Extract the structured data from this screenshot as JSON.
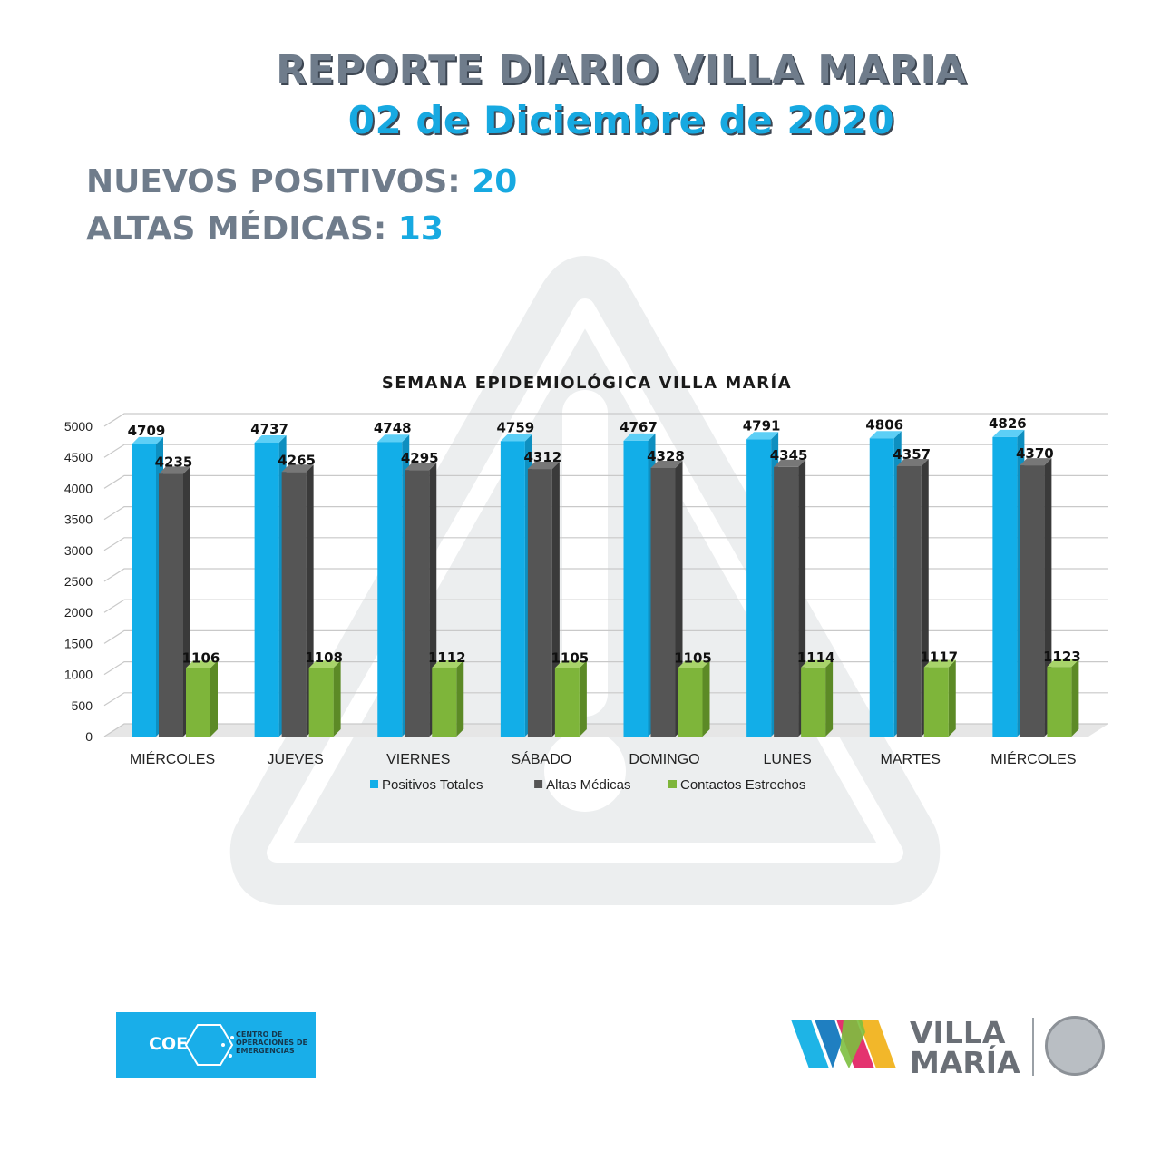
{
  "header": {
    "title": "REPORTE DIARIO VILLA MARIA",
    "date": "02 de Diciembre de 2020"
  },
  "stats": {
    "new_positive_label": "NUEVOS POSITIVOS:",
    "new_positive_value": "20",
    "discharges_label": "ALTAS MÉDICAS:",
    "discharges_value": "13"
  },
  "chart_data": {
    "type": "bar",
    "title": "SEMANA EPIDEMIOLÓGICA VILLA MARÍA",
    "categories": [
      "MIÉRCOLES",
      "JUEVES",
      "VIERNES",
      "SÁBADO",
      "DOMINGO",
      "LUNES",
      "MARTES",
      "MIÉRCOLES"
    ],
    "series": [
      {
        "name": "Positivos Totales",
        "color": "#12aee8",
        "values": [
          4709,
          4737,
          4748,
          4759,
          4767,
          4791,
          4806,
          4826
        ]
      },
      {
        "name": "Altas Médicas",
        "color": "#555555",
        "values": [
          4235,
          4265,
          4295,
          4312,
          4328,
          4345,
          4357,
          4370
        ]
      },
      {
        "name": "Contactos Estrechos",
        "color": "#7eb53a",
        "values": [
          1106,
          1108,
          1112,
          1105,
          1105,
          1114,
          1117,
          1123
        ]
      }
    ],
    "yticks": [
      0,
      500,
      1000,
      1500,
      2000,
      2500,
      3000,
      3500,
      4000,
      4500,
      5000
    ],
    "ylim": [
      0,
      5000
    ],
    "grid": true,
    "legend": "bottom",
    "style": "3d-bars"
  },
  "footer": {
    "coe_logo_text": "COE",
    "coe_subtitle": "CENTRO DE OPERACIONES DE EMERGENCIAS",
    "city_logo_line1": "VILLA",
    "city_logo_line2": "MARÍA"
  }
}
